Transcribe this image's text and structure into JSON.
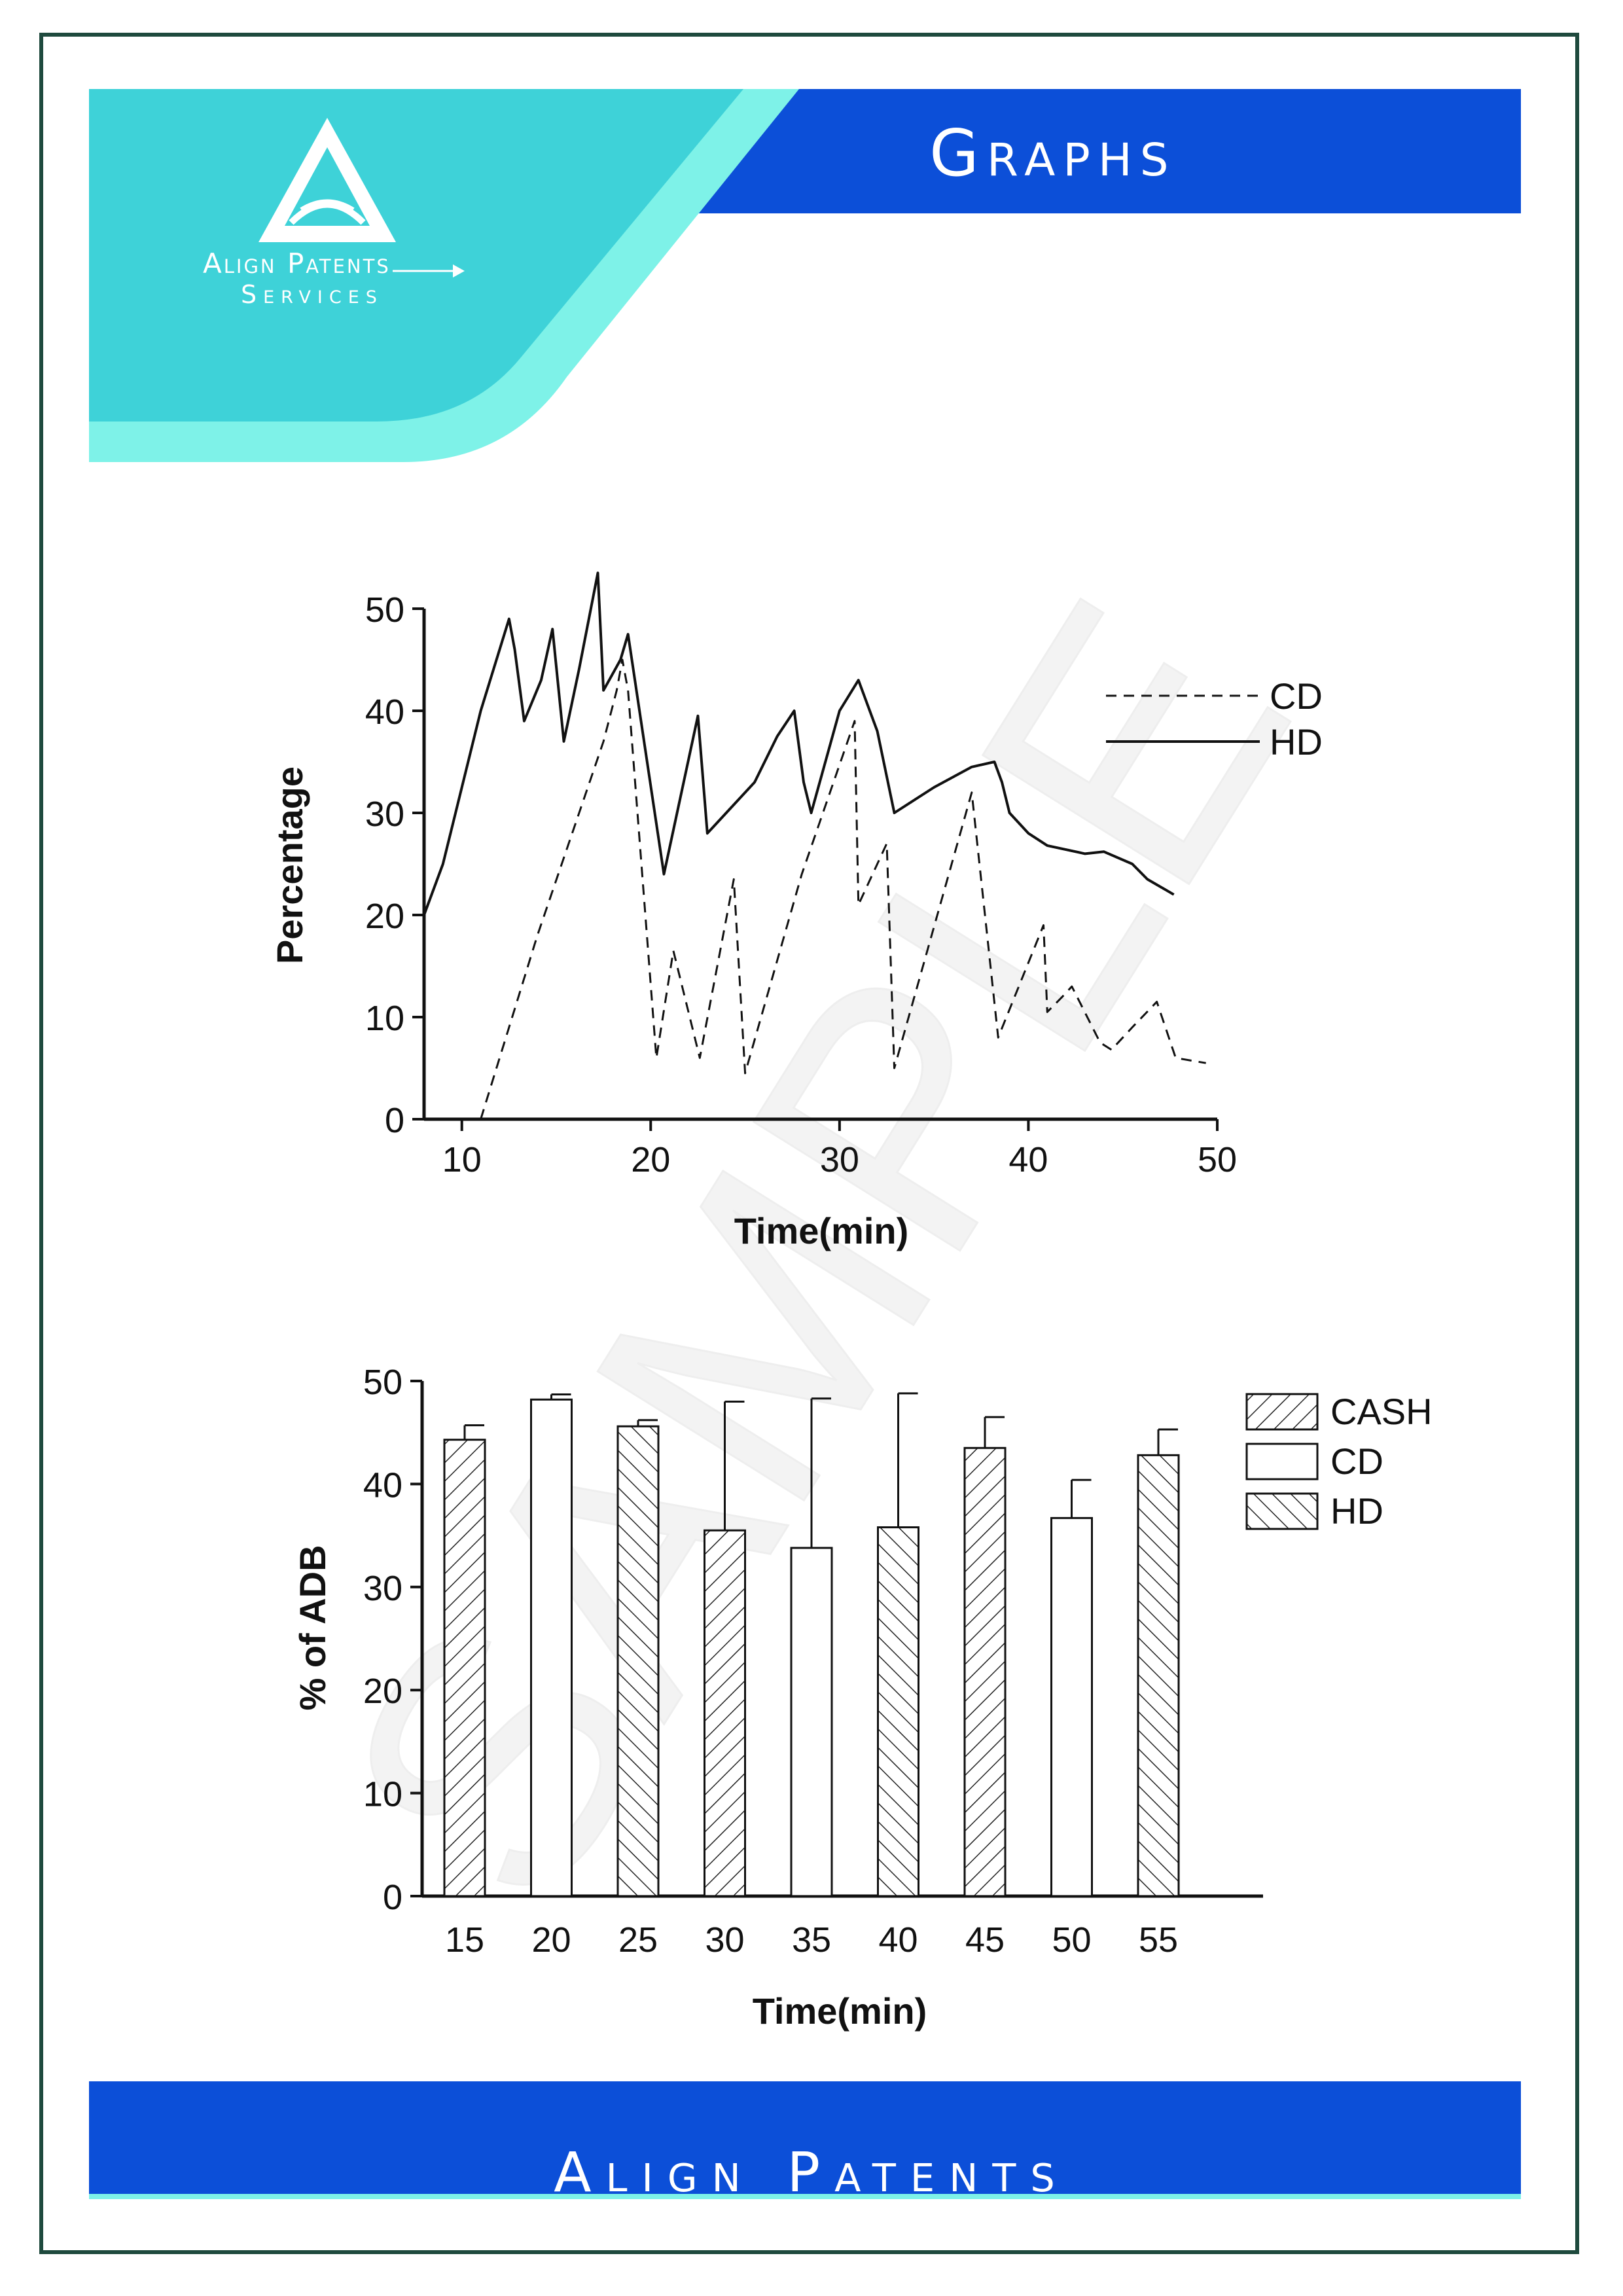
{
  "header": {
    "title": "Graphs"
  },
  "logo": {
    "line1": "Align Patents",
    "line2": "Services"
  },
  "watermark": "SAMPLE",
  "footer": {
    "title": "Align Patents"
  },
  "colors": {
    "teal": "#3ed2d8",
    "teal_light": "#7ef2e8",
    "blue": "#0c4fd8",
    "frame": "#1f4a3e"
  },
  "chart_data": [
    {
      "type": "line",
      "xlabel": "Time(min)",
      "ylabel": "Percentage",
      "xlim": [
        8,
        50
      ],
      "ylim": [
        0,
        50
      ],
      "xticks": [
        10,
        20,
        30,
        40,
        50
      ],
      "yticks": [
        0,
        10,
        20,
        30,
        40,
        50
      ],
      "legend_position": "top-right",
      "series": [
        {
          "name": "CD",
          "style": "dashed",
          "x": [
            11,
            14,
            17.5,
            18.2,
            18.5,
            18.8,
            19.3,
            20.3,
            21.2,
            22.6,
            24.4,
            25,
            28,
            30.8,
            31,
            32.5,
            32.9,
            37,
            38.4,
            40.8,
            41,
            41.8,
            42.3,
            43.8,
            44.4,
            45.5,
            46.8,
            47.8,
            49.4
          ],
          "y": [
            0,
            18,
            37,
            42,
            45,
            42,
            30,
            6,
            16.5,
            6,
            23.5,
            4.5,
            24,
            39,
            21,
            27,
            5,
            32,
            8,
            19,
            10.5,
            12,
            13,
            7.5,
            6.8,
            9,
            11.5,
            6,
            5.5
          ]
        },
        {
          "name": "HD",
          "style": "solid",
          "x": [
            8,
            9,
            11,
            12.5,
            12.8,
            13.3,
            14.2,
            14.8,
            15.4,
            16.2,
            17.2,
            17.5,
            18.4,
            18.8,
            20.7,
            22.5,
            23,
            24,
            25.5,
            26.7,
            27.6,
            28.1,
            28.5,
            30,
            31,
            32,
            32.9,
            35,
            37,
            38.2,
            38.6,
            39,
            40,
            41,
            43,
            44,
            45.5,
            46.3,
            47.7
          ],
          "y": [
            20,
            25,
            40,
            49,
            46,
            39,
            43,
            48,
            37,
            44,
            53.5,
            42,
            45,
            47.5,
            24,
            39.5,
            28,
            30,
            33,
            37.5,
            40,
            33,
            30,
            40,
            43,
            38,
            30,
            32.5,
            34.5,
            35,
            33,
            30,
            28,
            26.8,
            26,
            26.2,
            25,
            23.5,
            22
          ]
        }
      ]
    },
    {
      "type": "bar",
      "xlabel": "Time(min)",
      "ylabel": "% of ADB",
      "ylim": [
        0,
        50
      ],
      "yticks": [
        0,
        10,
        20,
        30,
        40,
        50
      ],
      "legend_position": "top-right",
      "legend": [
        {
          "label": "CASH",
          "pattern": "forward-hatch"
        },
        {
          "label": "CD",
          "pattern": "open"
        },
        {
          "label": "HD",
          "pattern": "back-hatch"
        }
      ],
      "categories": [
        "15",
        "20",
        "25",
        "30",
        "35",
        "40",
        "45",
        "50",
        "55"
      ],
      "bar_groups": [
        "CASH",
        "CD",
        "HD",
        "CASH",
        "CD",
        "HD",
        "CASH",
        "CD",
        "HD"
      ],
      "values": [
        44.3,
        48.2,
        45.6,
        35.5,
        33.8,
        35.8,
        43.5,
        36.7,
        42.8
      ],
      "errors": [
        1.4,
        0.5,
        0.6,
        12.5,
        14.5,
        13,
        3,
        3.7,
        2.5
      ]
    }
  ]
}
